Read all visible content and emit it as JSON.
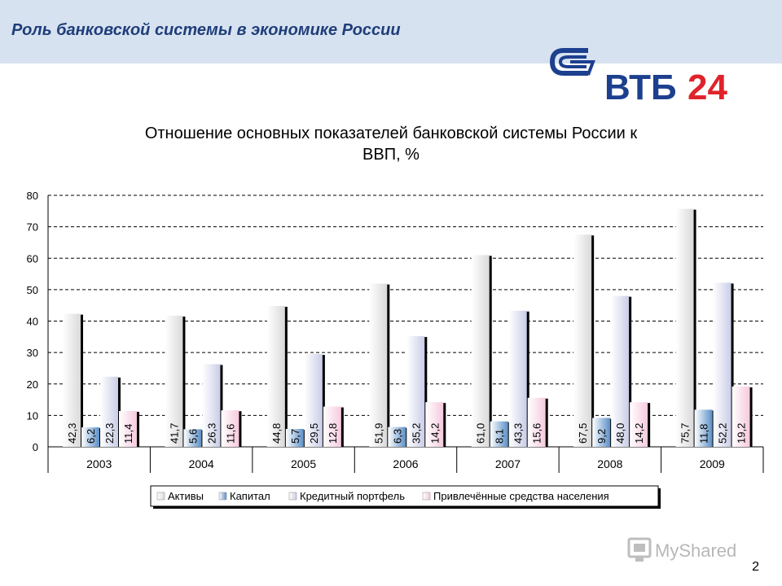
{
  "header": {
    "title": "Роль банковской системы в экономике России"
  },
  "logo": {
    "text_blue": "ВТБ",
    "text_red": "24",
    "color_blue": "#1d3f8f",
    "color_red": "#e0232b"
  },
  "watermark": {
    "text": "MySharеd"
  },
  "page_number": "2",
  "colors": {
    "header_band": "#d7e2f0",
    "header_text": "#1f3d7a"
  },
  "chart_data": {
    "type": "bar",
    "title_line1": "Отношение основных показателей банковской системы России к",
    "title_line2": "ВВП, %",
    "categories": [
      "2003",
      "2004",
      "2005",
      "2006",
      "2007",
      "2008",
      "2009"
    ],
    "ylim": [
      0,
      80
    ],
    "yticks": [
      "0",
      "10",
      "20",
      "30",
      "40",
      "50",
      "60",
      "70",
      "80"
    ],
    "grid": true,
    "legend_position": "bottom",
    "series": [
      {
        "name": "Активы",
        "values": [
          42.3,
          41.7,
          44.8,
          51.9,
          61.0,
          67.5,
          75.7
        ],
        "labels": [
          "42,3",
          "41,7",
          "44,8",
          "51,9",
          "61,0",
          "67,5",
          "75,7"
        ],
        "color": "#d9d9d9"
      },
      {
        "name": "Капитал",
        "values": [
          6.2,
          5.6,
          5.7,
          6.3,
          8.1,
          9.2,
          11.8
        ],
        "labels": [
          "6,2",
          "5,6",
          "5,7",
          "6,3",
          "8,1",
          "9,2",
          "11,8"
        ],
        "color": "#5b8fc7"
      },
      {
        "name": "Кредитный портфель",
        "values": [
          22.3,
          26.3,
          29.5,
          35.2,
          43.3,
          48.0,
          52.2
        ],
        "labels": [
          "22,3",
          "26,3",
          "29,5",
          "35,2",
          "43,3",
          "48,0",
          "52,2"
        ],
        "color": "#c9cde6"
      },
      {
        "name": "Привлечённые средства населения",
        "values": [
          11.4,
          11.6,
          12.8,
          14.2,
          15.6,
          14.2,
          19.2
        ],
        "labels": [
          "11,4",
          "11,6",
          "12,8",
          "14,2",
          "15,6",
          "14,2",
          "19,2"
        ],
        "color": "#f6c9dd"
      }
    ]
  }
}
